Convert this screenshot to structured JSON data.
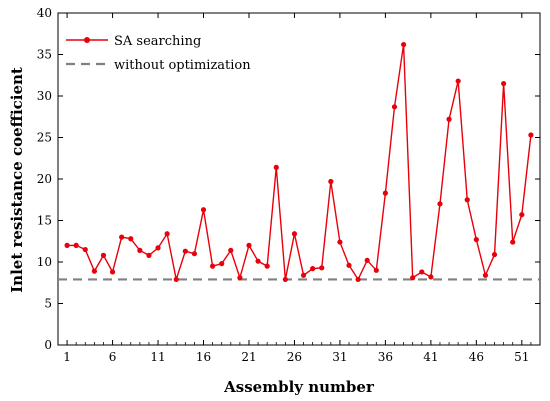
{
  "chart_data": {
    "type": "line",
    "xlabel": "Assembly number",
    "ylabel": "Inlet resistance coefficient",
    "xlim": [
      0,
      53
    ],
    "ylim": [
      0,
      40
    ],
    "xticks": [
      1,
      6,
      11,
      16,
      21,
      26,
      31,
      36,
      41,
      46,
      51
    ],
    "yticks": [
      0,
      5,
      10,
      15,
      20,
      25,
      30,
      35,
      40
    ],
    "grid": false,
    "legend_position": "top-left",
    "series": [
      {
        "name": "SA searching",
        "color": "#e8000b",
        "marker": "circle",
        "line_style": "solid",
        "x": [
          1,
          2,
          3,
          4,
          5,
          6,
          7,
          8,
          9,
          10,
          11,
          12,
          13,
          14,
          15,
          16,
          17,
          18,
          19,
          20,
          21,
          22,
          23,
          24,
          25,
          26,
          27,
          28,
          29,
          30,
          31,
          32,
          33,
          34,
          35,
          36,
          37,
          38,
          39,
          40,
          41,
          42,
          43,
          44,
          45,
          46,
          47,
          48,
          49,
          50,
          51,
          52
        ],
        "y": [
          12.0,
          12.0,
          11.5,
          8.9,
          10.8,
          8.8,
          13.0,
          12.8,
          11.4,
          10.8,
          11.7,
          13.4,
          7.9,
          11.3,
          11.0,
          16.3,
          9.5,
          9.8,
          11.4,
          8.1,
          12.0,
          10.1,
          9.5,
          21.4,
          7.9,
          13.4,
          8.4,
          9.2,
          9.3,
          19.7,
          12.4,
          9.6,
          7.9,
          10.2,
          9.0,
          18.3,
          28.7,
          36.2,
          8.1,
          8.8,
          8.2,
          17.0,
          27.2,
          31.8,
          17.5,
          12.7,
          8.4,
          10.9,
          31.5,
          12.4,
          15.7,
          25.3
        ]
      },
      {
        "name": "without optimization",
        "color": "#808080",
        "line_style": "dashed",
        "x": [
          0,
          53
        ],
        "y": [
          7.9,
          7.9
        ]
      }
    ]
  }
}
